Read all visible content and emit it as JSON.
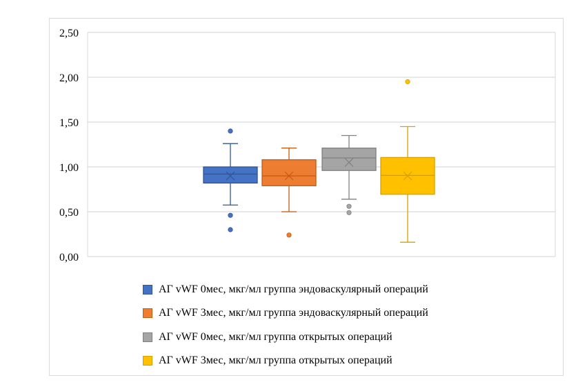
{
  "chart_data": {
    "type": "boxplot",
    "title": "",
    "xlabel": "",
    "ylabel": "",
    "ylim": [
      0,
      2.5
    ],
    "yticks": [
      "0,00",
      "0,50",
      "1,00",
      "1,50",
      "2,00",
      "2,50"
    ],
    "ytick_values": [
      0,
      0.5,
      1.0,
      1.5,
      2.0,
      2.5
    ],
    "grid": true,
    "legend_position": "bottom",
    "series": [
      {
        "name": "АГ vWF 0мес, мкг/мл группа эндоваскулярный операций",
        "color": "#4472c4",
        "stroke": "#2f5597",
        "whisker_low": 0.575,
        "q1": 0.82,
        "median": 0.92,
        "mean": 0.9,
        "q3": 1.0,
        "whisker_high": 1.26,
        "outliers": [
          1.4,
          0.46,
          0.3
        ]
      },
      {
        "name": "АГ vWF 3мес, мкг/мл группа эндоваскулярный операций",
        "color": "#ed7d31",
        "stroke": "#c55a11",
        "whisker_low": 0.5,
        "q1": 0.79,
        "median": 0.9,
        "mean": 0.9,
        "q3": 1.08,
        "whisker_high": 1.21,
        "outliers": [
          0.24
        ]
      },
      {
        "name": "АГ vWF 0мес, мкг/мл группа открытых операций",
        "color": "#a5a5a5",
        "stroke": "#7f7f7f",
        "whisker_low": 0.64,
        "q1": 0.96,
        "median": 1.1,
        "mean": 1.05,
        "q3": 1.21,
        "whisker_high": 1.35,
        "outliers": [
          0.56,
          0.49
        ]
      },
      {
        "name": "АГ vWF 3мес, мкг/мл группа открытых операций",
        "color": "#ffc000",
        "stroke": "#d6a100",
        "whisker_low": 0.16,
        "q1": 0.695,
        "median": 0.905,
        "mean": 0.9,
        "q3": 1.105,
        "whisker_high": 1.45,
        "outliers": [
          1.95
        ]
      }
    ]
  }
}
